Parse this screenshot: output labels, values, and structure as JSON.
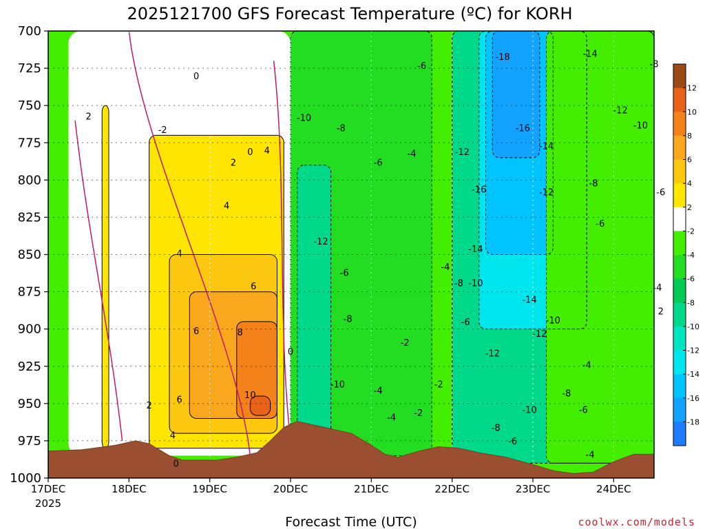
{
  "chart_data": {
    "type": "heatmap",
    "title": "2025121700 GFS Forecast Temperature (ºC) for KORH",
    "xlabel": "Forecast Time (UTC)",
    "ylabel": "",
    "x_ticks": [
      "17DEC",
      "18DEC",
      "19DEC",
      "20DEC",
      "21DEC",
      "22DEC",
      "23DEC",
      "24DEC"
    ],
    "x_tick_sub": "2025",
    "xlim_hours": [
      0,
      180
    ],
    "y_ticks": [
      700,
      725,
      750,
      775,
      800,
      825,
      850,
      875,
      900,
      925,
      950,
      975,
      1000
    ],
    "ylim": [
      1000,
      700
    ],
    "grid": true,
    "colorbar": {
      "labels": [
        "12",
        "10",
        "8",
        "6",
        "4",
        "2",
        "-2",
        "-4",
        "-6",
        "-8",
        "-10",
        "-12",
        "-14",
        "-16",
        "-18"
      ],
      "bands": [
        {
          "min": 12,
          "max": 14,
          "color": "#9a4a14"
        },
        {
          "min": 10,
          "max": 12,
          "color": "#e8621a"
        },
        {
          "min": 8,
          "max": 10,
          "color": "#f4821a"
        },
        {
          "min": 6,
          "max": 8,
          "color": "#f9a81e"
        },
        {
          "min": 4,
          "max": 6,
          "color": "#fcc80f"
        },
        {
          "min": 2,
          "max": 4,
          "color": "#ffe600"
        },
        {
          "min": -2,
          "max": 2,
          "color": "#ffffff"
        },
        {
          "min": -4,
          "max": -2,
          "color": "#44ee00"
        },
        {
          "min": -6,
          "max": -4,
          "color": "#22dd22"
        },
        {
          "min": -8,
          "max": -6,
          "color": "#00cc55"
        },
        {
          "min": -10,
          "max": -8,
          "color": "#00d88a"
        },
        {
          "min": -12,
          "max": -10,
          "color": "#00e6c0"
        },
        {
          "min": -14,
          "max": -12,
          "color": "#00e6ee"
        },
        {
          "min": -16,
          "max": -14,
          "color": "#00c4ff"
        },
        {
          "min": -18,
          "max": -16,
          "color": "#12a2ff"
        },
        {
          "min": -20,
          "max": -18,
          "color": "#1e7cff"
        }
      ]
    },
    "surface_pressure": [
      {
        "h": 0,
        "p": 982
      },
      {
        "h": 10,
        "p": 981
      },
      {
        "h": 20,
        "p": 978
      },
      {
        "h": 26,
        "p": 975
      },
      {
        "h": 30,
        "p": 977
      },
      {
        "h": 36,
        "p": 985
      },
      {
        "h": 40,
        "p": 988
      },
      {
        "h": 44,
        "p": 988
      },
      {
        "h": 50,
        "p": 988
      },
      {
        "h": 56,
        "p": 986
      },
      {
        "h": 62,
        "p": 983
      },
      {
        "h": 66,
        "p": 975
      },
      {
        "h": 70,
        "p": 966
      },
      {
        "h": 74,
        "p": 962
      },
      {
        "h": 78,
        "p": 964
      },
      {
        "h": 84,
        "p": 967
      },
      {
        "h": 90,
        "p": 970
      },
      {
        "h": 96,
        "p": 978
      },
      {
        "h": 100,
        "p": 984
      },
      {
        "h": 104,
        "p": 986
      },
      {
        "h": 110,
        "p": 982
      },
      {
        "h": 116,
        "p": 979
      },
      {
        "h": 122,
        "p": 980
      },
      {
        "h": 128,
        "p": 983
      },
      {
        "h": 136,
        "p": 986
      },
      {
        "h": 144,
        "p": 991
      },
      {
        "h": 150,
        "p": 995
      },
      {
        "h": 156,
        "p": 997
      },
      {
        "h": 162,
        "p": 996
      },
      {
        "h": 168,
        "p": 989
      },
      {
        "h": 174,
        "p": 984
      },
      {
        "h": 180,
        "p": 984
      }
    ],
    "temperature_regions": [
      {
        "level": 2,
        "h0": 16,
        "h1": 18,
        "p_top": 750,
        "p_bot": 980
      },
      {
        "level": 2,
        "h0": 30,
        "h1": 70,
        "p_top": 770,
        "p_bot": 980
      },
      {
        "level": 4,
        "h0": 36,
        "h1": 68,
        "p_top": 850,
        "p_bot": 970
      },
      {
        "level": 6,
        "h0": 42,
        "h1": 68,
        "p_top": 875,
        "p_bot": 960
      },
      {
        "level": 8,
        "h0": 56,
        "h1": 68,
        "p_top": 895,
        "p_bot": 960
      },
      {
        "level": 10,
        "h0": 60,
        "h1": 66,
        "p_top": 945,
        "p_bot": 958
      },
      {
        "level": -6,
        "h0": 72,
        "h1": 114,
        "p_top": 700,
        "p_bot": 985
      },
      {
        "level": -10,
        "h0": 74,
        "h1": 84,
        "p_top": 790,
        "p_bot": 975
      },
      {
        "level": -10,
        "h0": 120,
        "h1": 180,
        "p_top": 700,
        "p_bot": 990
      },
      {
        "level": -14,
        "h0": 128,
        "h1": 160,
        "p_top": 700,
        "p_bot": 900
      },
      {
        "level": -16,
        "h0": 130,
        "h1": 150,
        "p_top": 700,
        "p_bot": 850
      },
      {
        "level": -18,
        "h0": 132,
        "h1": 146,
        "p_top": 700,
        "p_bot": 785
      },
      {
        "level": -4,
        "h0": 148,
        "h1": 180,
        "p_top": 700,
        "p_bot": 990
      }
    ],
    "contour_labels": [
      {
        "text": "2",
        "h": 12,
        "p": 757
      },
      {
        "text": "0",
        "h": 44,
        "p": 730
      },
      {
        "text": "-2",
        "h": 34,
        "p": 766
      },
      {
        "text": "0",
        "h": 60,
        "p": 781
      },
      {
        "text": "4",
        "h": 65,
        "p": 780
      },
      {
        "text": "2",
        "h": 55,
        "p": 788
      },
      {
        "text": "4",
        "h": 53,
        "p": 817
      },
      {
        "text": "4",
        "h": 39,
        "p": 849
      },
      {
        "text": "6",
        "h": 61,
        "p": 871
      },
      {
        "text": "6",
        "h": 44,
        "p": 901
      },
      {
        "text": "8",
        "h": 57,
        "p": 902
      },
      {
        "text": "10",
        "h": 60,
        "p": 944
      },
      {
        "text": "6",
        "h": 39,
        "p": 947
      },
      {
        "text": "2",
        "h": 30,
        "p": 951
      },
      {
        "text": "4",
        "h": 37,
        "p": 971
      },
      {
        "text": "0",
        "h": 38,
        "p": 990
      },
      {
        "text": "0",
        "h": 72,
        "p": 915
      },
      {
        "text": "-10",
        "h": 76,
        "p": 758
      },
      {
        "text": "-8",
        "h": 87,
        "p": 765
      },
      {
        "text": "-6",
        "h": 98,
        "p": 788
      },
      {
        "text": "-4",
        "h": 108,
        "p": 782
      },
      {
        "text": "-12",
        "h": 81,
        "p": 841
      },
      {
        "text": "-6",
        "h": 88,
        "p": 862
      },
      {
        "text": "-8",
        "h": 89,
        "p": 893
      },
      {
        "text": "-2",
        "h": 106,
        "p": 909
      },
      {
        "text": "-10",
        "h": 86,
        "p": 937
      },
      {
        "text": "-4",
        "h": 98,
        "p": 941
      },
      {
        "text": "-4",
        "h": 102,
        "p": 959
      },
      {
        "text": "-2",
        "h": 110,
        "p": 956
      },
      {
        "text": "-2",
        "h": 116,
        "p": 937
      },
      {
        "text": "-6",
        "h": 111,
        "p": 723
      },
      {
        "text": "-12",
        "h": 123,
        "p": 781
      },
      {
        "text": "-18",
        "h": 135,
        "p": 717
      },
      {
        "text": "-16",
        "h": 141,
        "p": 765
      },
      {
        "text": "-14",
        "h": 148,
        "p": 777
      },
      {
        "text": "-16",
        "h": 128,
        "p": 806
      },
      {
        "text": "-12",
        "h": 148,
        "p": 808
      },
      {
        "text": "-14",
        "h": 161,
        "p": 715
      },
      {
        "text": "-12",
        "h": 170,
        "p": 753
      },
      {
        "text": "-10",
        "h": 176,
        "p": 763
      },
      {
        "text": "-8",
        "h": 180,
        "p": 722
      },
      {
        "text": "-8",
        "h": 162,
        "p": 802
      },
      {
        "text": "-6",
        "h": 182,
        "p": 808
      },
      {
        "text": "-6",
        "h": 164,
        "p": 829
      },
      {
        "text": "-14",
        "h": 127,
        "p": 846
      },
      {
        "text": "-4",
        "h": 118,
        "p": 858
      },
      {
        "text": "-8",
        "h": 122,
        "p": 869
      },
      {
        "text": "-10",
        "h": 127,
        "p": 869
      },
      {
        "text": "-14",
        "h": 143,
        "p": 880
      },
      {
        "text": "-10",
        "h": 150,
        "p": 894
      },
      {
        "text": "-6",
        "h": 124,
        "p": 895
      },
      {
        "text": "-12",
        "h": 146,
        "p": 903
      },
      {
        "text": "-12",
        "h": 132,
        "p": 916
      },
      {
        "text": "-4",
        "h": 181,
        "p": 872
      },
      {
        "text": "2",
        "h": 182,
        "p": 888
      },
      {
        "text": "-4",
        "h": 160,
        "p": 924
      },
      {
        "text": "-8",
        "h": 154,
        "p": 943
      },
      {
        "text": "-6",
        "h": 159,
        "p": 954
      },
      {
        "text": "-10",
        "h": 143,
        "p": 954
      },
      {
        "text": "-8",
        "h": 133,
        "p": 966
      },
      {
        "text": "-6",
        "h": 138,
        "p": 975
      },
      {
        "text": "-4",
        "h": 161,
        "p": 984
      }
    ]
  },
  "credit": "coolwx.com/models"
}
